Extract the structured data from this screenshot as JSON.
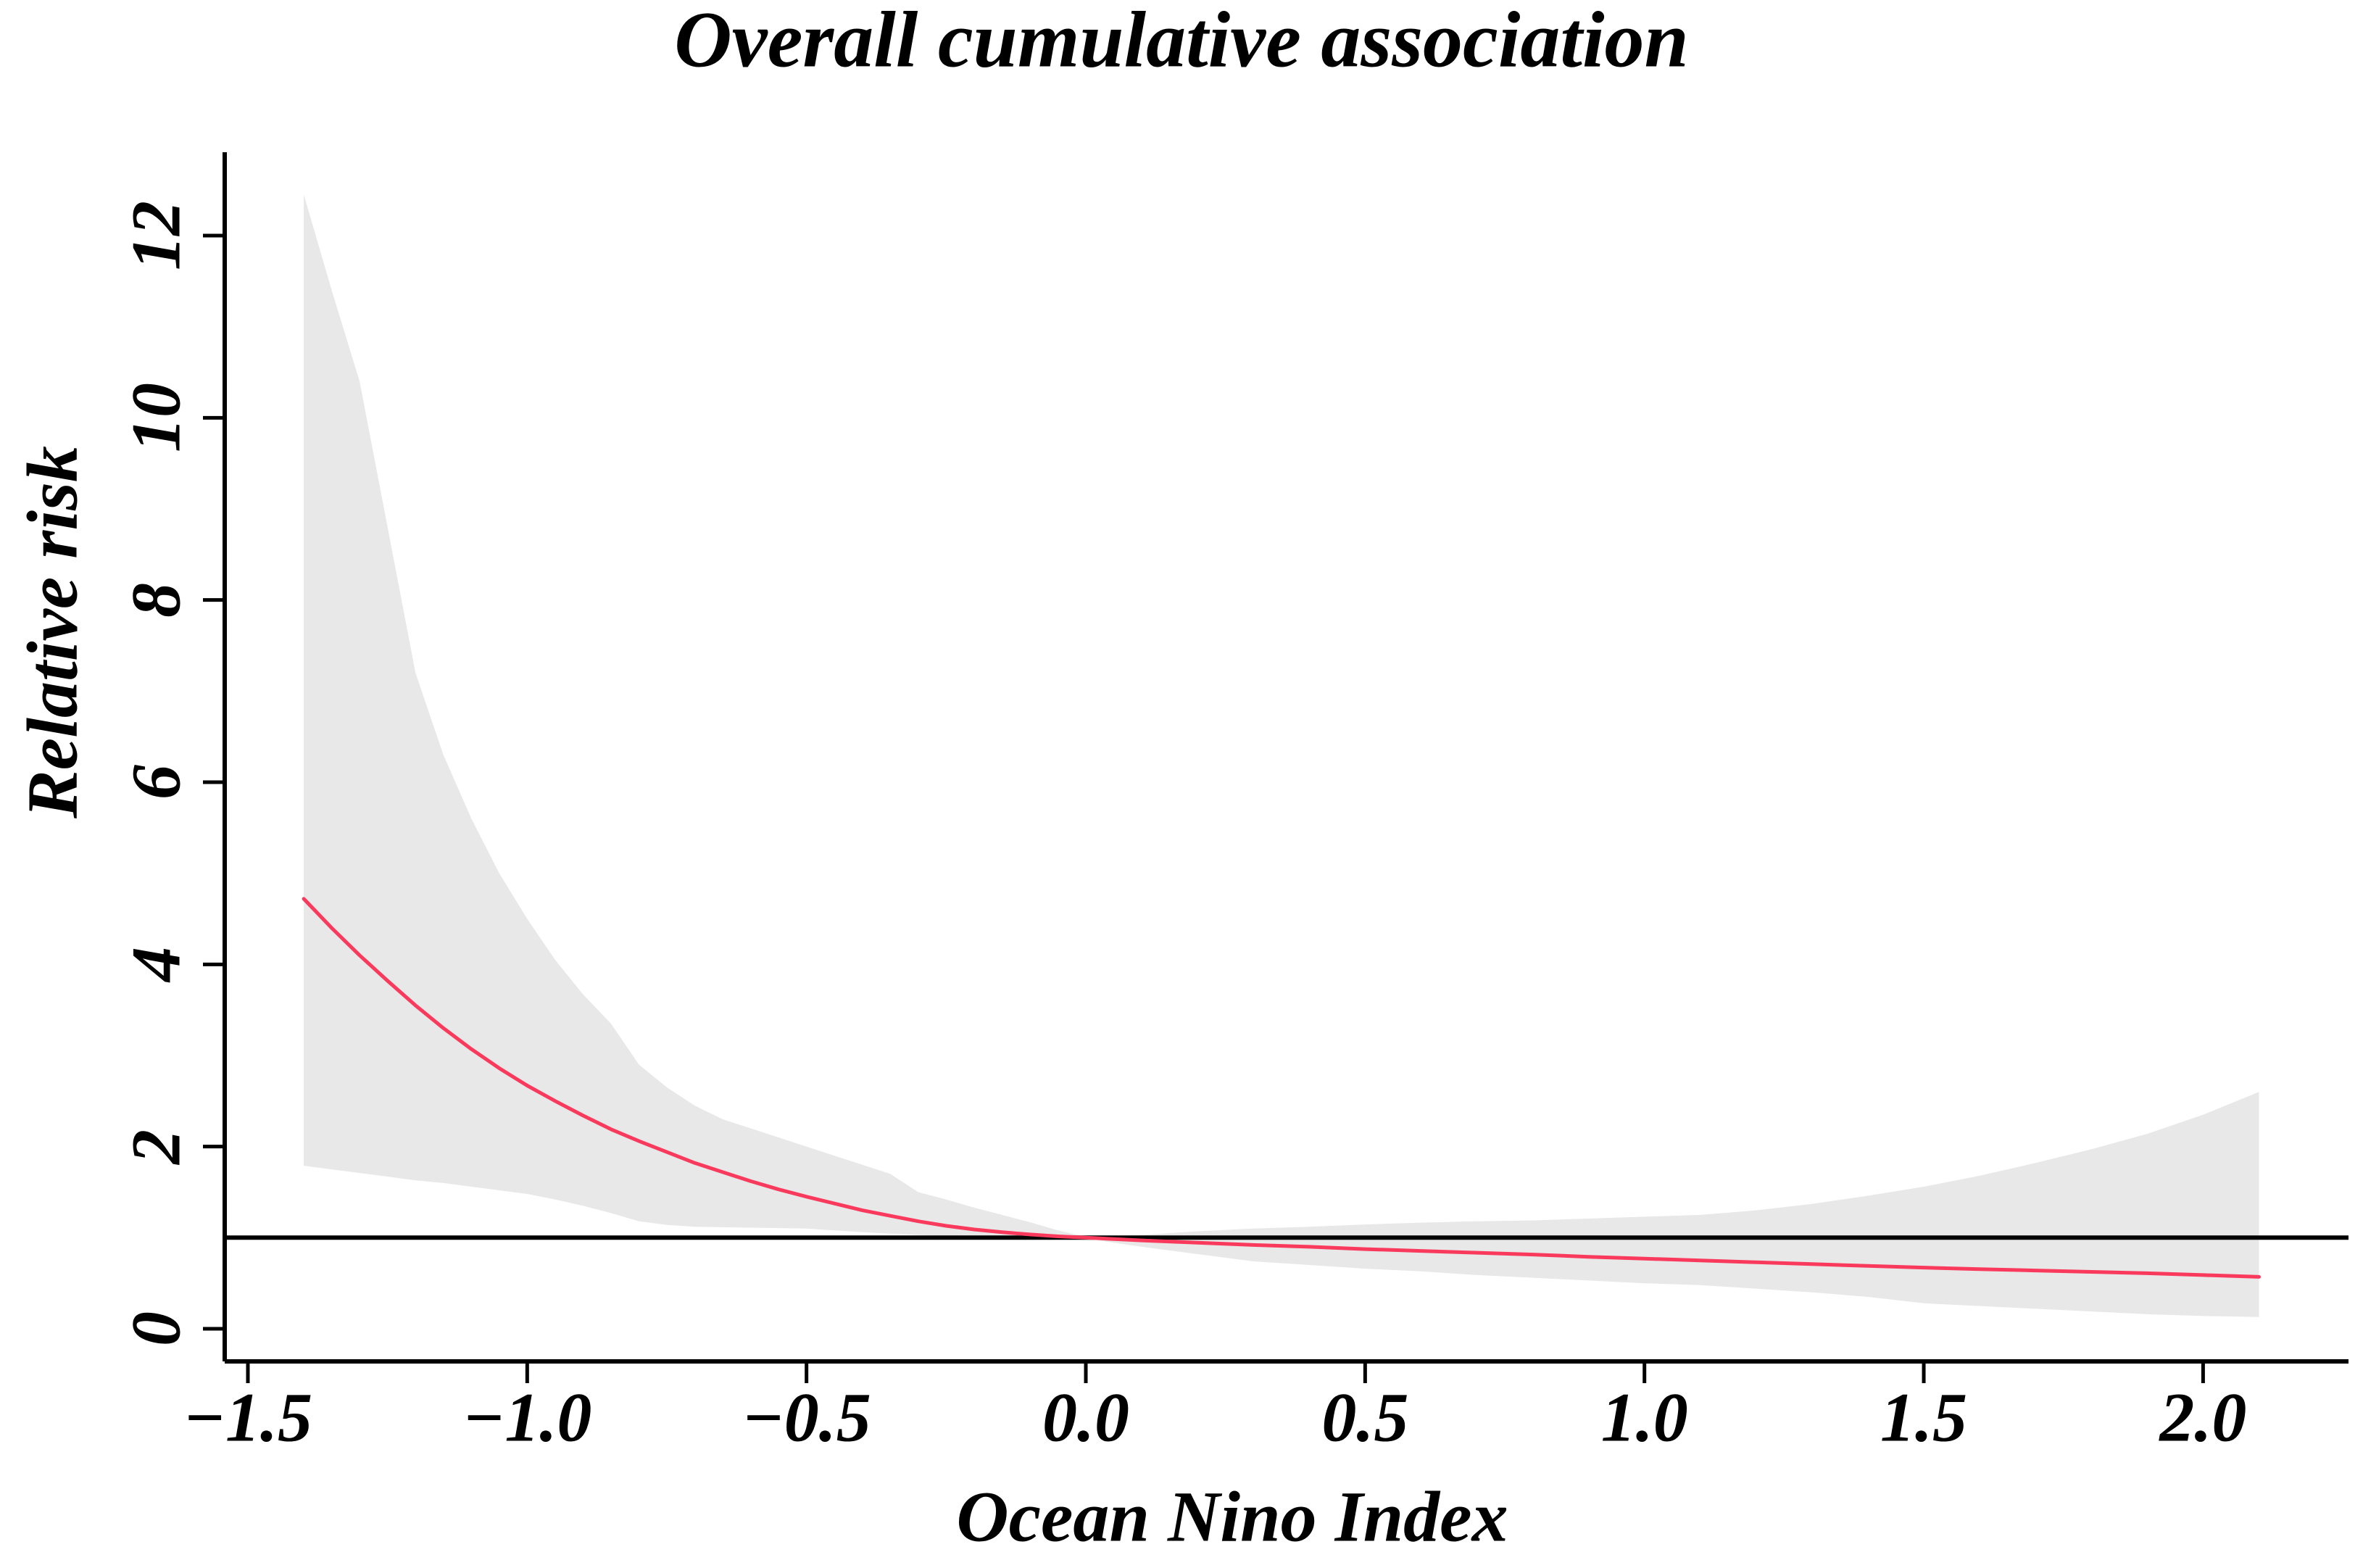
{
  "chart_data": {
    "type": "line",
    "title": "Overall cumulative association",
    "xlabel": "Ocean Nino Index",
    "ylabel": "Relative risk",
    "xlim": [
      -1.5415,
      2.2603
    ],
    "ylim": [
      -0.358,
      12.915
    ],
    "grid": false,
    "legend": "none",
    "reference_line_y": 1,
    "x_ticks": [
      {
        "value": -1.5,
        "label": "−1.5"
      },
      {
        "value": -1.0,
        "label": "−1.0"
      },
      {
        "value": -0.5,
        "label": "−0.5"
      },
      {
        "value": 0.0,
        "label": "0.0"
      },
      {
        "value": 0.5,
        "label": "0.5"
      },
      {
        "value": 1.0,
        "label": "1.0"
      },
      {
        "value": 1.5,
        "label": "1.5"
      },
      {
        "value": 2.0,
        "label": "2.0"
      }
    ],
    "y_ticks": [
      {
        "value": 0,
        "label": "0"
      },
      {
        "value": 2,
        "label": "2"
      },
      {
        "value": 4,
        "label": "4"
      },
      {
        "value": 6,
        "label": "6"
      },
      {
        "value": 8,
        "label": "8"
      },
      {
        "value": 10,
        "label": "10"
      },
      {
        "value": 12,
        "label": "12"
      }
    ],
    "x": [
      -1.4,
      -1.35,
      -1.3,
      -1.25,
      -1.2,
      -1.15,
      -1.1,
      -1.05,
      -1.0,
      -0.95,
      -0.9,
      -0.85,
      -0.8,
      -0.75,
      -0.7,
      -0.65,
      -0.6,
      -0.55,
      -0.5,
      -0.45,
      -0.4,
      -0.35,
      -0.3,
      -0.25,
      -0.2,
      -0.15,
      -0.1,
      -0.05,
      0.0,
      0.1,
      0.2,
      0.3,
      0.4,
      0.5,
      0.6,
      0.7,
      0.8,
      0.9,
      1.0,
      1.1,
      1.2,
      1.3,
      1.4,
      1.5,
      1.6,
      1.7,
      1.8,
      1.9,
      2.0,
      2.1
    ],
    "series": [
      {
        "name": "estimate",
        "color": "#fa3a5c",
        "values": [
          4.72,
          4.4,
          4.1,
          3.82,
          3.55,
          3.3,
          3.07,
          2.86,
          2.67,
          2.5,
          2.34,
          2.19,
          2.06,
          1.94,
          1.82,
          1.72,
          1.62,
          1.53,
          1.45,
          1.375,
          1.3,
          1.24,
          1.18,
          1.13,
          1.09,
          1.06,
          1.035,
          1.015,
          1.0,
          0.97,
          0.945,
          0.92,
          0.9,
          0.875,
          0.855,
          0.835,
          0.815,
          0.79,
          0.77,
          0.75,
          0.73,
          0.71,
          0.69,
          0.672,
          0.655,
          0.64,
          0.625,
          0.61,
          0.59,
          0.57
        ]
      },
      {
        "name": "upper_ci",
        "color": "#e8e8e8",
        "values": [
          12.45,
          11.4,
          10.4,
          8.8,
          7.2,
          6.3,
          5.6,
          5.0,
          4.5,
          4.05,
          3.67,
          3.35,
          2.9,
          2.65,
          2.45,
          2.3,
          2.2,
          2.1,
          2.0,
          1.9,
          1.8,
          1.7,
          1.5,
          1.42,
          1.33,
          1.25,
          1.17,
          1.08,
          1.01,
          1.03,
          1.07,
          1.1,
          1.12,
          1.145,
          1.165,
          1.18,
          1.19,
          1.21,
          1.23,
          1.25,
          1.3,
          1.37,
          1.46,
          1.56,
          1.68,
          1.82,
          1.97,
          2.14,
          2.35,
          2.6
        ]
      },
      {
        "name": "lower_ci",
        "color": "#e8e8e8",
        "values": [
          1.79,
          1.75,
          1.71,
          1.67,
          1.63,
          1.6,
          1.56,
          1.52,
          1.48,
          1.42,
          1.35,
          1.27,
          1.18,
          1.14,
          1.12,
          1.115,
          1.11,
          1.105,
          1.1,
          1.08,
          1.06,
          1.045,
          1.03,
          1.02,
          1.01,
          1.005,
          1.0,
          1.0,
          0.99,
          0.9,
          0.82,
          0.74,
          0.7,
          0.66,
          0.63,
          0.59,
          0.56,
          0.53,
          0.5,
          0.48,
          0.44,
          0.4,
          0.35,
          0.28,
          0.25,
          0.22,
          0.19,
          0.16,
          0.14,
          0.13
        ]
      }
    ],
    "band_color": "#e8e8e8",
    "line_color": "#fa3a5c",
    "axis_color": "#000000",
    "background_color": "#ffffff"
  }
}
